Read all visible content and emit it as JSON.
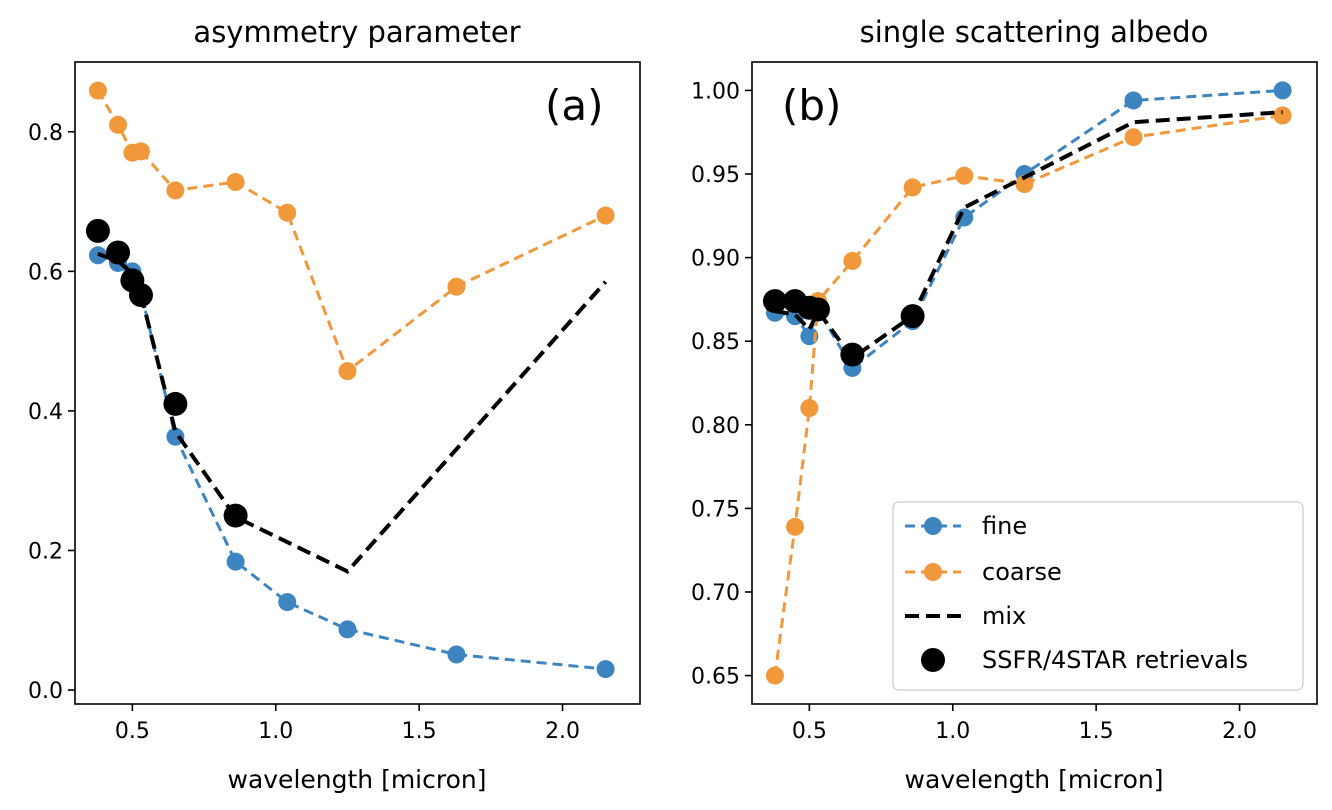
{
  "chart_data": [
    {
      "type": "line",
      "title": "asymmetry parameter",
      "panel_label": "(a)",
      "xlabel": "wavelength [micron]",
      "ylabel": "",
      "xlim": [
        0.3,
        2.27
      ],
      "ylim": [
        -0.02,
        0.9
      ],
      "xticks": [
        0.5,
        1.0,
        1.5,
        2.0
      ],
      "xticklabels": [
        "0.5",
        "1.0",
        "1.5",
        "2.0"
      ],
      "yticks": [
        0.0,
        0.2,
        0.4,
        0.6,
        0.8
      ],
      "yticklabels": [
        "0.0",
        "0.2",
        "0.4",
        "0.6",
        "0.8"
      ],
      "grid": false,
      "series": [
        {
          "name": "fine",
          "style": "dashed-marker",
          "color": "#3d85c0",
          "x": [
            0.38,
            0.45,
            0.5,
            0.53,
            0.65,
            0.86,
            1.04,
            1.25,
            1.63,
            2.15
          ],
          "y": [
            0.623,
            0.612,
            0.6,
            0.57,
            0.363,
            0.184,
            0.126,
            0.087,
            0.051,
            0.03
          ]
        },
        {
          "name": "coarse",
          "style": "dashed-marker",
          "color": "#f0983a",
          "x": [
            0.38,
            0.45,
            0.5,
            0.53,
            0.65,
            0.86,
            1.04,
            1.25,
            1.63,
            2.15
          ],
          "y": [
            0.859,
            0.81,
            0.77,
            0.772,
            0.716,
            0.728,
            0.684,
            0.457,
            0.578,
            0.68
          ]
        },
        {
          "name": "mix",
          "style": "dashed",
          "color": "#000000",
          "x": [
            0.38,
            0.45,
            0.5,
            0.53,
            0.65,
            0.86,
            1.25,
            2.15
          ],
          "y": [
            0.625,
            0.615,
            0.597,
            0.567,
            0.37,
            0.248,
            0.17,
            0.585
          ]
        },
        {
          "name": "SSFR/4STAR retrievals",
          "style": "marker",
          "color": "#000000",
          "x": [
            0.38,
            0.45,
            0.5,
            0.53,
            0.65,
            0.86
          ],
          "y": [
            0.658,
            0.627,
            0.587,
            0.566,
            0.41,
            0.25
          ]
        }
      ]
    },
    {
      "type": "line",
      "title": "single scattering albedo",
      "panel_label": "(b)",
      "xlabel": "wavelength [micron]",
      "ylabel": "",
      "xlim": [
        0.3,
        2.27
      ],
      "ylim": [
        0.633,
        1.017
      ],
      "xticks": [
        0.5,
        1.0,
        1.5,
        2.0
      ],
      "xticklabels": [
        "0.5",
        "1.0",
        "1.5",
        "2.0"
      ],
      "yticks": [
        0.65,
        0.7,
        0.75,
        0.8,
        0.85,
        0.9,
        0.95,
        1.0
      ],
      "yticklabels": [
        "0.65",
        "0.70",
        "0.75",
        "0.80",
        "0.85",
        "0.90",
        "0.95",
        "1.00"
      ],
      "grid": false,
      "legend_position": "lower-right",
      "series": [
        {
          "name": "fine",
          "style": "dashed-marker",
          "color": "#3d85c0",
          "x": [
            0.38,
            0.45,
            0.5,
            0.53,
            0.65,
            0.86,
            1.04,
            1.25,
            1.63,
            2.15
          ],
          "y": [
            0.867,
            0.865,
            0.853,
            0.869,
            0.834,
            0.862,
            0.924,
            0.95,
            0.994,
            1.0
          ]
        },
        {
          "name": "coarse",
          "style": "dashed-marker",
          "color": "#f0983a",
          "x": [
            0.38,
            0.45,
            0.5,
            0.53,
            0.65,
            0.86,
            1.04,
            1.25,
            1.63,
            2.15
          ],
          "y": [
            0.65,
            0.739,
            0.81,
            0.874,
            0.898,
            0.942,
            0.949,
            0.944,
            0.972,
            0.985
          ]
        },
        {
          "name": "mix",
          "style": "dashed",
          "color": "#000000",
          "x": [
            0.38,
            0.45,
            0.5,
            0.53,
            0.65,
            0.86,
            1.04,
            1.25,
            1.63,
            2.15
          ],
          "y": [
            0.868,
            0.866,
            0.857,
            0.868,
            0.84,
            0.865,
            0.93,
            0.948,
            0.981,
            0.987
          ]
        },
        {
          "name": "SSFR/4STAR retrievals",
          "style": "marker",
          "color": "#000000",
          "x": [
            0.38,
            0.45,
            0.5,
            0.53,
            0.65,
            0.86
          ],
          "y": [
            0.874,
            0.874,
            0.87,
            0.869,
            0.842,
            0.865
          ]
        }
      ]
    }
  ]
}
